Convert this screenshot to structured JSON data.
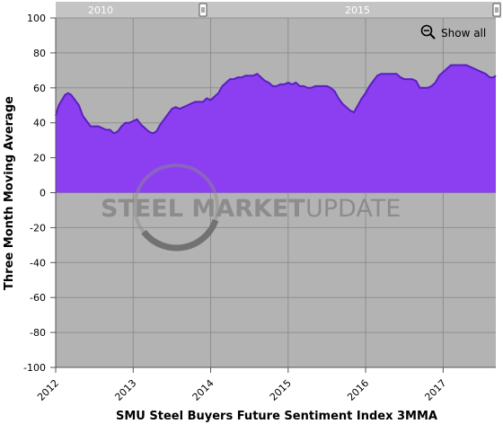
{
  "chart_data": {
    "type": "area",
    "title": "",
    "xlabel": "SMU Steel Buyers Future Sentiment Index 3MMA",
    "ylabel": "Three Month Moving Average",
    "ylim": [
      -100,
      100
    ],
    "yticks": [
      100,
      80,
      60,
      40,
      20,
      0,
      -20,
      -40,
      -60,
      -80,
      -100
    ],
    "xlim": [
      2012.0,
      2017.68
    ],
    "xticks": [
      2012,
      2013,
      2014,
      2015,
      2016,
      2017
    ],
    "xtick_labels": [
      "2012",
      "2013",
      "2014",
      "2015",
      "2016",
      "2017"
    ],
    "grid": true,
    "series_color": "#8b3ff0",
    "fill_color": "#8b3ff0",
    "plot_background": "#b3b3b3",
    "series": [
      {
        "x": [
          2012.0,
          2012.04,
          2012.08,
          2012.12,
          2012.16,
          2012.2,
          2012.25,
          2012.3,
          2012.35,
          2012.4,
          2012.45,
          2012.5,
          2012.55,
          2012.6,
          2012.65,
          2012.7,
          2012.75,
          2012.8,
          2012.85,
          2012.9,
          2012.95,
          2013.0,
          2013.05,
          2013.1,
          2013.15,
          2013.2,
          2013.25,
          2013.3,
          2013.35,
          2013.4,
          2013.45,
          2013.5,
          2013.55,
          2013.6,
          2013.65,
          2013.7,
          2013.75,
          2013.8,
          2013.85,
          2013.9,
          2013.95,
          2014.0,
          2014.05,
          2014.1,
          2014.15,
          2014.2,
          2014.25,
          2014.3,
          2014.35,
          2014.4,
          2014.45,
          2014.5,
          2014.55,
          2014.6,
          2014.65,
          2014.7,
          2014.75,
          2014.8,
          2014.85,
          2014.9,
          2014.95,
          2015.0,
          2015.05,
          2015.1,
          2015.15,
          2015.2,
          2015.25,
          2015.3,
          2015.35,
          2015.4,
          2015.45,
          2015.5,
          2015.55,
          2015.6,
          2015.65,
          2015.7,
          2015.75,
          2015.8,
          2015.85,
          2015.9,
          2015.95,
          2016.0,
          2016.05,
          2016.1,
          2016.15,
          2016.2,
          2016.25,
          2016.3,
          2016.35,
          2016.4,
          2016.45,
          2016.5,
          2016.55,
          2016.6,
          2016.65,
          2016.7,
          2016.75,
          2016.8,
          2016.85,
          2016.9,
          2016.95,
          2017.0,
          2017.05,
          2017.1,
          2017.15,
          2017.2,
          2017.25,
          2017.3,
          2017.35,
          2017.4,
          2017.45,
          2017.5,
          2017.55,
          2017.6,
          2017.65,
          2017.68
        ],
        "y": [
          44,
          50,
          53,
          56,
          57,
          56,
          53,
          50,
          44,
          41,
          38,
          38,
          38,
          37,
          36,
          36,
          34,
          35,
          38,
          40,
          40,
          41,
          42,
          39,
          37,
          35,
          34,
          35,
          39,
          42,
          45,
          48,
          49,
          48,
          49,
          50,
          51,
          52,
          52,
          52,
          54,
          53,
          55,
          57,
          61,
          63,
          65,
          65,
          66,
          66,
          67,
          67,
          67,
          68,
          66,
          64,
          63,
          61,
          61,
          62,
          62,
          63,
          62,
          63,
          61,
          61,
          60,
          60,
          61,
          61,
          61,
          61,
          60,
          58,
          54,
          51,
          49,
          47,
          46,
          50,
          54,
          57,
          61,
          64,
          67,
          68,
          68,
          68,
          68,
          68,
          66,
          65,
          65,
          65,
          64,
          60,
          60,
          60,
          61,
          63,
          67,
          69,
          71,
          73,
          73,
          73,
          73,
          73,
          72,
          71,
          70,
          69,
          68,
          66,
          66,
          67
        ]
      }
    ]
  },
  "navigator": {
    "labels": [
      "2010",
      "2015"
    ],
    "handle_icon": "navigator-handle-icon"
  },
  "controls": {
    "show_all_label": "Show all",
    "zoom_icon": "zoom-out-icon"
  },
  "watermark": {
    "bold_text": "STEEL MARKET",
    "light_text": "UPDATE"
  }
}
